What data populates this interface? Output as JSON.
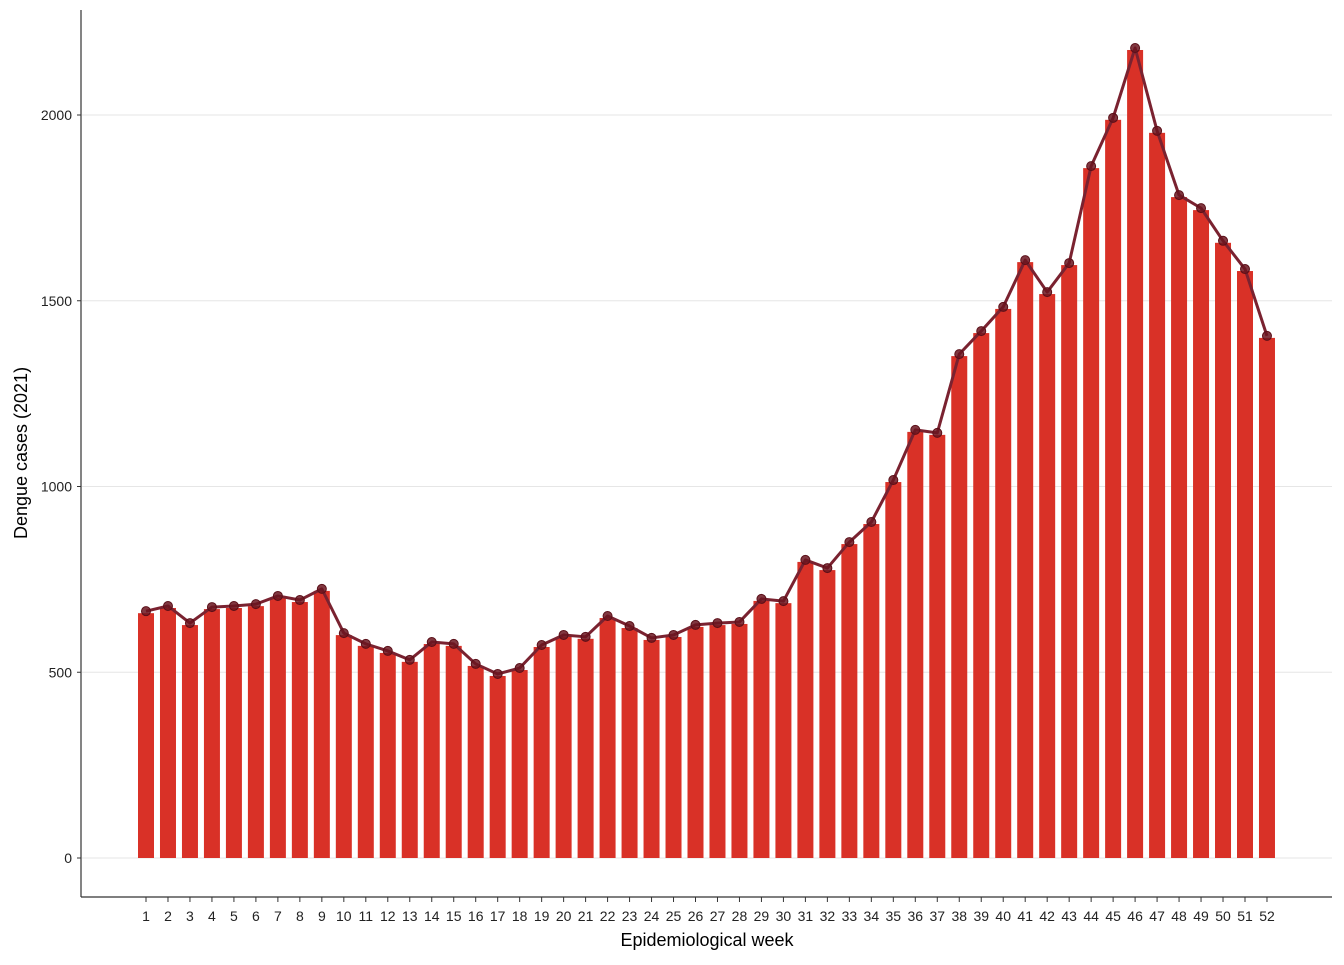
{
  "chart_data": {
    "type": "bar",
    "title": "",
    "xlabel": "Epidemiological week",
    "ylabel": "Dengue cases (2021)",
    "ylim": [
      0,
      2200
    ],
    "yticks": [
      0,
      500,
      1000,
      1500,
      2000
    ],
    "grid": "horizontal major",
    "legend": "none",
    "categories": [
      "1",
      "2",
      "3",
      "4",
      "5",
      "6",
      "7",
      "8",
      "9",
      "10",
      "11",
      "12",
      "13",
      "14",
      "15",
      "16",
      "17",
      "18",
      "19",
      "20",
      "21",
      "22",
      "23",
      "24",
      "25",
      "26",
      "27",
      "28",
      "29",
      "30",
      "31",
      "32",
      "33",
      "34",
      "35",
      "36",
      "37",
      "38",
      "39",
      "40",
      "41",
      "42",
      "43",
      "44",
      "45",
      "46",
      "47",
      "48",
      "49",
      "50",
      "51",
      "52"
    ],
    "values": [
      659,
      673,
      627,
      670,
      673,
      678,
      700,
      689,
      719,
      600,
      571,
      552,
      528,
      576,
      571,
      517,
      490,
      506,
      568,
      595,
      590,
      646,
      619,
      587,
      595,
      622,
      627,
      630,
      692,
      686,
      797,
      775,
      845,
      899,
      1012,
      1147,
      1139,
      1351,
      1413,
      1478,
      1604,
      1518,
      1596,
      1857,
      1987,
      2175,
      1952,
      1779,
      1744,
      1656,
      1580,
      1400
    ],
    "overlay": "line with points",
    "colors": {
      "bar": "#d93127",
      "line": "#7a2230",
      "point": "#6b1520"
    }
  }
}
